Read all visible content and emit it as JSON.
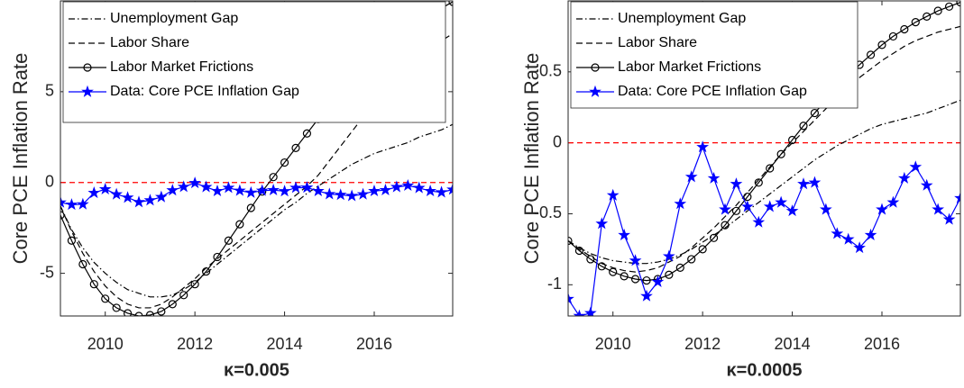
{
  "chart_data": [
    {
      "type": "line",
      "xlabel": "κ=0.005",
      "ylabel": "Core PCE Inflation Rate",
      "x": [
        2009,
        2009.25,
        2009.5,
        2009.75,
        2010,
        2010.25,
        2010.5,
        2010.75,
        2011,
        2011.25,
        2011.5,
        2011.75,
        2012,
        2012.25,
        2012.5,
        2012.75,
        2013,
        2013.25,
        2013.5,
        2013.75,
        2014,
        2014.25,
        2014.5,
        2014.75,
        2015,
        2015.25,
        2015.5,
        2015.75,
        2016,
        2016.25,
        2016.5,
        2016.75,
        2017,
        2017.25,
        2017.5,
        2017.75
      ],
      "xlim": [
        2009,
        2017.75
      ],
      "ylim": [
        -7.35,
        10
      ],
      "xticks": [
        2010,
        2012,
        2014,
        2016
      ],
      "yticks": [
        -5,
        0,
        5
      ],
      "reference_line": {
        "value": 0,
        "color": "#ff0000"
      },
      "legend": "upper left",
      "series": [
        {
          "name": "Unemployment Gap",
          "color": "#000000",
          "style": "dashdot",
          "marker": "none",
          "values": [
            -1.3,
            -2.6,
            -3.6,
            -4.4,
            -5.0,
            -5.5,
            -5.9,
            -6.1,
            -6.3,
            -6.3,
            -6.2,
            -5.9,
            -5.5,
            -5.0,
            -4.5,
            -4.0,
            -3.5,
            -3.0,
            -2.5,
            -2.0,
            -1.5,
            -1.1,
            -0.6,
            -0.2,
            0.2,
            0.6,
            1.0,
            1.3,
            1.6,
            1.8,
            2.0,
            2.2,
            2.5,
            2.7,
            2.9,
            3.2
          ]
        },
        {
          "name": "Labor Share",
          "color": "#000000",
          "style": "dashed",
          "marker": "none",
          "values": [
            -1.3,
            -2.7,
            -3.9,
            -4.9,
            -5.7,
            -6.3,
            -6.7,
            -6.9,
            -6.9,
            -6.7,
            -6.3,
            -5.8,
            -5.3,
            -4.7,
            -4.2,
            -3.7,
            -3.2,
            -2.7,
            -2.2,
            -1.7,
            -1.2,
            -0.7,
            -0.2,
            0.4,
            1.2,
            2.0,
            2.8,
            3.6,
            4.3,
            5.0,
            5.6,
            6.2,
            6.8,
            7.3,
            7.8,
            8.2
          ]
        },
        {
          "name": "Labor Market Frictions",
          "color": "#000000",
          "style": "solid",
          "marker": "circle",
          "values": [
            -1.8,
            -3.2,
            -4.5,
            -5.6,
            -6.4,
            -6.9,
            -7.2,
            -7.35,
            -7.3,
            -7.1,
            -6.7,
            -6.2,
            -5.6,
            -4.9,
            -4.1,
            -3.2,
            -2.3,
            -1.4,
            -0.5,
            0.3,
            1.1,
            1.9,
            2.7,
            3.5,
            4.2,
            4.9,
            5.6,
            6.2,
            6.8,
            7.3,
            7.8,
            8.3,
            8.8,
            9.2,
            9.6,
            9.95
          ]
        },
        {
          "name": "Data: Core PCE Inflation Gap",
          "color": "#0000ff",
          "style": "solid",
          "marker": "star",
          "values": [
            -1.1,
            -1.22,
            -1.2,
            -0.57,
            -0.37,
            -0.65,
            -0.83,
            -1.08,
            -0.98,
            -0.8,
            -0.43,
            -0.24,
            -0.03,
            -0.25,
            -0.47,
            -0.29,
            -0.45,
            -0.56,
            -0.45,
            -0.42,
            -0.48,
            -0.29,
            -0.28,
            -0.47,
            -0.64,
            -0.68,
            -0.74,
            -0.65,
            -0.47,
            -0.42,
            -0.25,
            -0.17,
            -0.3,
            -0.47,
            -0.54,
            -0.39
          ]
        }
      ]
    },
    {
      "type": "line",
      "xlabel": "κ=0.0005",
      "ylabel": "Core PCE Inflation Rate",
      "x": [
        2009,
        2009.25,
        2009.5,
        2009.75,
        2010,
        2010.25,
        2010.5,
        2010.75,
        2011,
        2011.25,
        2011.5,
        2011.75,
        2012,
        2012.25,
        2012.5,
        2012.75,
        2013,
        2013.25,
        2013.5,
        2013.75,
        2014,
        2014.25,
        2014.5,
        2014.75,
        2015,
        2015.25,
        2015.5,
        2015.75,
        2016,
        2016.25,
        2016.5,
        2016.75,
        2017,
        2017.25,
        2017.5,
        2017.75
      ],
      "xlim": [
        2009,
        2017.75
      ],
      "ylim": [
        -1.22,
        1
      ],
      "xticks": [
        2010,
        2012,
        2014,
        2016
      ],
      "yticks": [
        -1,
        -0.5,
        0,
        0.5
      ],
      "reference_line": {
        "value": 0,
        "color": "#ff0000"
      },
      "legend": "upper left",
      "series": [
        {
          "name": "Unemployment Gap",
          "color": "#000000",
          "style": "dashdot",
          "marker": "none",
          "values": [
            -0.69,
            -0.74,
            -0.78,
            -0.81,
            -0.83,
            -0.84,
            -0.85,
            -0.85,
            -0.84,
            -0.82,
            -0.79,
            -0.75,
            -0.7,
            -0.65,
            -0.6,
            -0.54,
            -0.48,
            -0.42,
            -0.36,
            -0.3,
            -0.24,
            -0.18,
            -0.12,
            -0.07,
            -0.02,
            0.02,
            0.06,
            0.1,
            0.13,
            0.15,
            0.17,
            0.19,
            0.21,
            0.24,
            0.27,
            0.3
          ]
        },
        {
          "name": "Labor Share",
          "color": "#000000",
          "style": "dashed",
          "marker": "none",
          "values": [
            -0.69,
            -0.75,
            -0.8,
            -0.85,
            -0.88,
            -0.9,
            -0.91,
            -0.9,
            -0.88,
            -0.84,
            -0.8,
            -0.74,
            -0.67,
            -0.6,
            -0.52,
            -0.44,
            -0.35,
            -0.26,
            -0.17,
            -0.08,
            0.0,
            0.08,
            0.16,
            0.24,
            0.32,
            0.39,
            0.46,
            0.52,
            0.58,
            0.63,
            0.68,
            0.72,
            0.75,
            0.78,
            0.8,
            0.82
          ]
        },
        {
          "name": "Labor Market Frictions",
          "color": "#000000",
          "style": "solid",
          "marker": "circle",
          "values": [
            -0.69,
            -0.76,
            -0.82,
            -0.87,
            -0.91,
            -0.94,
            -0.96,
            -0.97,
            -0.96,
            -0.93,
            -0.88,
            -0.82,
            -0.75,
            -0.67,
            -0.58,
            -0.48,
            -0.38,
            -0.28,
            -0.18,
            -0.08,
            0.02,
            0.12,
            0.21,
            0.3,
            0.39,
            0.47,
            0.55,
            0.62,
            0.69,
            0.75,
            0.8,
            0.85,
            0.89,
            0.93,
            0.96,
            0.99
          ]
        },
        {
          "name": "Data: Core PCE Inflation Gap",
          "color": "#0000ff",
          "style": "solid",
          "marker": "star",
          "values": [
            -1.1,
            -1.22,
            -1.2,
            -0.57,
            -0.37,
            -0.65,
            -0.83,
            -1.08,
            -0.98,
            -0.8,
            -0.43,
            -0.24,
            -0.03,
            -0.25,
            -0.47,
            -0.29,
            -0.45,
            -0.56,
            -0.45,
            -0.42,
            -0.48,
            -0.29,
            -0.28,
            -0.47,
            -0.64,
            -0.68,
            -0.74,
            -0.65,
            -0.47,
            -0.42,
            -0.25,
            -0.17,
            -0.3,
            -0.47,
            -0.54,
            -0.39
          ]
        }
      ]
    }
  ]
}
